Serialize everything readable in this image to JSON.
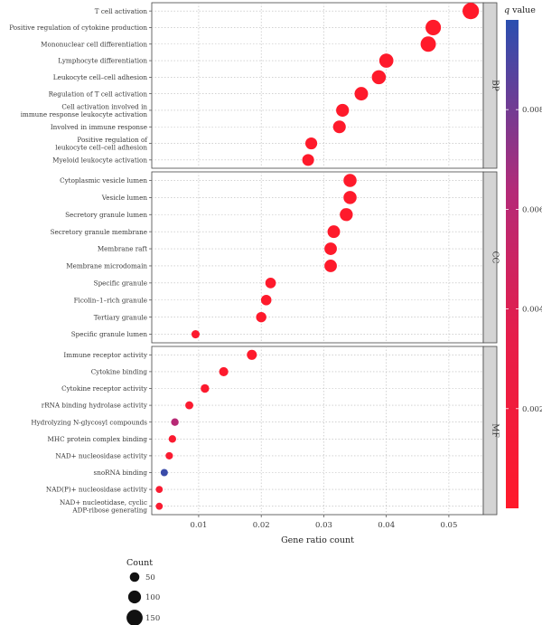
{
  "chart_data": {
    "type": "scatter",
    "xlabel": "Gene ratio count",
    "xlim": [
      0.0025,
      0.0555
    ],
    "x_ticks": [
      0.01,
      0.02,
      0.03,
      0.04,
      0.05
    ],
    "x_tick_labels": [
      "0.01",
      "0.02",
      "0.03",
      "0.04",
      "0.05"
    ],
    "grid": true,
    "legend_placement": "right",
    "color_legend": {
      "title_italic": "q",
      "title_rest": "value",
      "ticks": [
        0.002,
        0.004,
        0.006,
        0.008
      ],
      "tick_labels": [
        "0.002",
        "0.004",
        "0.006",
        "0.008"
      ],
      "range": [
        0.0,
        0.0098
      ],
      "low_color": "#ff1a2a",
      "high_color": "#2a4fb0"
    },
    "size_legend": {
      "title": "Count",
      "values": [
        50,
        100,
        150
      ],
      "labels": [
        "50",
        "100",
        "150"
      ]
    },
    "facets": [
      {
        "name": "BP",
        "rows": [
          {
            "term": [
              "T cell activation"
            ],
            "x": 0.0535,
            "count": 155,
            "q": 5e-05
          },
          {
            "term": [
              "Positive regulation of cytokine production"
            ],
            "x": 0.0475,
            "count": 140,
            "q": 5e-05
          },
          {
            "term": [
              "Mononuclear cell differentiation"
            ],
            "x": 0.0467,
            "count": 138,
            "q": 5e-05
          },
          {
            "term": [
              "Lymphocyte differentiation"
            ],
            "x": 0.04,
            "count": 120,
            "q": 0.0001
          },
          {
            "term": [
              "Leukocyte cell–cell adhesion"
            ],
            "x": 0.0388,
            "count": 118,
            "q": 0.0001
          },
          {
            "term": [
              "Regulation of T cell activation"
            ],
            "x": 0.036,
            "count": 110,
            "q": 0.0001
          },
          {
            "term": [
              "Cell activation involved in",
              "immune response leukocyte activation"
            ],
            "x": 0.033,
            "count": 100,
            "q": 0.0001
          },
          {
            "term": [
              "Involved in immune response"
            ],
            "x": 0.0325,
            "count": 98,
            "q": 0.0001
          },
          {
            "term": [
              "Positive regulation of",
              "leukocyte cell–cell adhesion"
            ],
            "x": 0.028,
            "count": 85,
            "q": 0.0001
          },
          {
            "term": [
              "Myeloid leukocyte activation"
            ],
            "x": 0.0275,
            "count": 84,
            "q": 0.0001
          }
        ]
      },
      {
        "name": "CC",
        "rows": [
          {
            "term": [
              "Cytoplasmic vesicle lumen"
            ],
            "x": 0.0342,
            "count": 104,
            "q": 0.0001
          },
          {
            "term": [
              "Vesicle lumen"
            ],
            "x": 0.0342,
            "count": 104,
            "q": 0.0001
          },
          {
            "term": [
              "Secretory granule lumen"
            ],
            "x": 0.0336,
            "count": 102,
            "q": 0.0001
          },
          {
            "term": [
              "Secretory granule membrane"
            ],
            "x": 0.0316,
            "count": 96,
            "q": 0.0001
          },
          {
            "term": [
              "Membrane raft"
            ],
            "x": 0.0311,
            "count": 94,
            "q": 0.0001
          },
          {
            "term": [
              "Membrane microdomain"
            ],
            "x": 0.0311,
            "count": 94,
            "q": 0.0001
          },
          {
            "term": [
              "Specific granule"
            ],
            "x": 0.0215,
            "count": 65,
            "q": 0.0002
          },
          {
            "term": [
              "Ficolin–1–rich granule"
            ],
            "x": 0.0208,
            "count": 63,
            "q": 0.0002
          },
          {
            "term": [
              "Tertiary granule"
            ],
            "x": 0.02,
            "count": 61,
            "q": 0.0002
          },
          {
            "term": [
              "Specific granule lumen"
            ],
            "x": 0.0095,
            "count": 29,
            "q": 0.0004
          }
        ]
      },
      {
        "name": "MF",
        "rows": [
          {
            "term": [
              "Immune receptor activity"
            ],
            "x": 0.0185,
            "count": 56,
            "q": 0.0002
          },
          {
            "term": [
              "Cytokine binding"
            ],
            "x": 0.014,
            "count": 43,
            "q": 0.0003
          },
          {
            "term": [
              "Cytokine receptor activity"
            ],
            "x": 0.011,
            "count": 33,
            "q": 0.0004
          },
          {
            "term": [
              "rRNA binding hydrolase activity"
            ],
            "x": 0.0085,
            "count": 26,
            "q": 0.0006
          },
          {
            "term": [
              "Hydrolyzing N-glycosyl compounds"
            ],
            "x": 0.0062,
            "count": 19,
            "q": 0.0062
          },
          {
            "term": [
              "MHC protein complex binding"
            ],
            "x": 0.0058,
            "count": 18,
            "q": 0.0006
          },
          {
            "term": [
              "NAD+ nucleosidase activity"
            ],
            "x": 0.0053,
            "count": 16,
            "q": 0.0007
          },
          {
            "term": [
              "snoRNA binding"
            ],
            "x": 0.0045,
            "count": 14,
            "q": 0.0094
          },
          {
            "term": [
              "NAD(P)+ nucleosidase activity"
            ],
            "x": 0.0037,
            "count": 11,
            "q": 0.0008
          },
          {
            "term": [
              "NAD+ nucleotidase, cyclic",
              "ADP-ribose generating"
            ],
            "x": 0.0037,
            "count": 11,
            "q": 0.0008
          }
        ]
      }
    ]
  }
}
